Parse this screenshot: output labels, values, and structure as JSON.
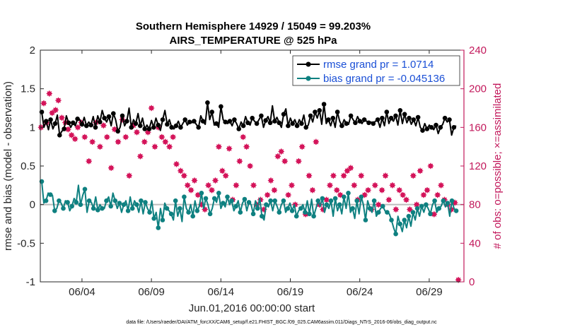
{
  "chart_data": {
    "type": "line",
    "title": "Southern Hemisphere 14929 / 15049 = 99.203%",
    "subtitle": "AIRS_TEMPERATURE @ 525 hPa",
    "xlabel": "Jun.01,2016 00:00:00 start",
    "ylabel_left": "rmse and bias (model - observation)",
    "ylabel_right": "# of obs: o=possible; ×=assimilated",
    "footer": "data file: /Users/raeder/DAI/ATM_forcXX/CAM6_setup/f.e21.FHIST_BGC.f09_025.CAM6assim.011/Diags_NTrS_2016-06/obs_diag_output.nc",
    "xlim": [
      0,
      30.5
    ],
    "x_ticks": [
      3,
      8,
      13,
      18,
      23,
      28
    ],
    "x_tick_labels": [
      "06/04",
      "06/09",
      "06/14",
      "06/19",
      "06/24",
      "06/29"
    ],
    "ylim_left": [
      -1,
      2
    ],
    "y_ticks_left": [
      "-1",
      "-0.5",
      "0",
      "0.5",
      "1",
      "1.5",
      "2"
    ],
    "ylim_right": [
      0,
      240
    ],
    "y_ticks_right": [
      "0",
      "40",
      "80",
      "120",
      "160",
      "200",
      "240"
    ],
    "grid": false,
    "legend_position": "top-right",
    "colors": {
      "rmse": "#000000",
      "bias": "#0e8080",
      "obs": "#d4145a",
      "zero": "#bdbdbd",
      "right_axis": "#c2185b",
      "legend_text": "#1a4fd6"
    },
    "series": [
      {
        "name": "rmse grand pr = 1.0714",
        "axis": "left",
        "values": [
          1.2,
          1.0,
          1.08,
          0.97,
          1.1,
          0.98,
          1.05,
          1.16,
          0.9,
          0.95,
          0.98,
          1.15,
          1.06,
          1.0,
          1.06,
          1.02,
          1.11,
          1.1,
          1.04,
          1.13,
          1.02,
          1.07,
          1.03,
          1.14,
          1.0,
          1.15,
          1.07,
          1.22,
          1.12,
          1.07,
          1.14,
          1.02,
          1.18,
          1.1,
          0.95,
          1.0,
          1.15,
          1.02,
          1.08,
          1.25,
          1.0,
          1.1,
          1.05,
          1.18,
          1.02,
          1.12,
          0.98,
          1.03,
          0.98,
          1.09,
          1.0,
          1.12,
          1.03,
          0.96,
          1.1,
          1.22,
          1.04,
          1.1,
          1.0,
          0.98,
          1.02,
          1.08,
          1.0,
          1.05,
          1.1,
          1.03,
          1.07,
          1.06,
          1.08,
          1.04,
          1.0,
          1.15,
          1.08,
          1.04,
          1.32,
          1.1,
          1.2,
          1.03,
          1.05,
          1.0,
          1.27,
          1.1,
          1.07,
          1.05,
          1.08,
          1.02,
          1.1,
          1.05,
          0.98,
          1.07,
          1.02,
          1.14,
          1.06,
          1.03,
          1.12,
          1.08,
          1.05,
          1.1,
          1.15,
          1.0,
          1.09,
          1.14,
          1.06,
          1.28,
          1.08,
          1.13,
          1.06,
          1.0,
          1.17,
          1.24,
          1.02,
          1.12,
          1.05,
          1.1,
          1.02,
          1.1,
          1.05,
          1.16,
          1.0,
          1.03,
          1.15,
          1.07,
          1.2,
          1.12,
          1.22,
          1.04,
          1.3,
          1.05,
          1.1,
          1.02,
          1.12,
          1.0,
          1.2,
          1.08,
          1.02,
          1.1,
          1.05,
          1.04,
          1.15,
          1.1,
          1.06,
          1.14,
          1.08,
          1.05,
          1.1,
          1.08,
          1.06,
          1.07,
          1.05,
          1.08,
          1.1,
          1.0,
          1.12,
          1.02,
          1.2,
          1.05,
          1.12,
          1.08,
          1.15,
          1.03,
          1.22,
          1.05,
          1.17,
          1.06,
          1.12,
          1.04,
          1.1,
          1.02,
          1.13,
          1.0,
          0.96,
          1.05,
          0.98,
          1.03,
          1.0,
          0.97,
          1.03,
          0.92,
          1.0,
          1.04,
          1.12,
          1.07,
          1.1,
          0.9,
          1.0,
          1.02
        ]
      },
      {
        "name": "bias grand pr = -0.045136",
        "axis": "left",
        "values": [
          0.3,
          0.02,
          0.05,
          0.15,
          0.13,
          0.12,
          -0.08,
          -0.05,
          0.05,
          0.02,
          -0.05,
          0.05,
          0.03,
          -0.08,
          -0.02,
          0.08,
          0.03,
          0.25,
          0.0,
          0.12,
          0.2,
          -0.1,
          0.05,
          0.03,
          -0.05,
          0.1,
          -0.07,
          0.0,
          -0.05,
          -0.05,
          0.05,
          0.1,
          -0.02,
          0.15,
          0.05,
          -0.05,
          0.02,
          -0.1,
          0.0,
          0.05,
          -0.08,
          0.1,
          -0.05,
          0.05,
          0.0,
          -0.1,
          0.05,
          -0.12,
          0.03,
          -0.05,
          -0.1,
          0.05,
          -0.18,
          -0.1,
          -0.3,
          -0.05,
          -0.2,
          0.02,
          -0.05,
          -0.08,
          -0.12,
          -0.2,
          0.05,
          -0.15,
          -0.05,
          -0.22,
          0.1,
          -0.05,
          -0.1,
          0.0,
          -0.15,
          0.05,
          -0.08,
          -0.02,
          0.15,
          -0.05,
          0.08,
          0.0,
          -0.12,
          -0.05,
          0.08,
          0.03,
          0.15,
          -0.05,
          0.02,
          -0.03,
          0.1,
          0.0,
          0.05,
          -0.08,
          -0.02,
          0.05,
          -0.1,
          0.02,
          0.07,
          -0.08,
          0.03,
          0.0,
          -0.12,
          0.05,
          -0.05,
          0.08,
          -0.15,
          -0.2,
          0.0,
          -0.03,
          0.05,
          -0.08,
          0.05,
          -0.02,
          -0.1,
          0.0,
          0.05,
          -0.1,
          -0.05,
          0.02,
          -0.08,
          0.0,
          -0.15,
          -0.08,
          -0.05,
          0.0,
          -0.1,
          0.05,
          -0.12,
          0.07,
          -0.15,
          -0.05,
          0.05,
          -0.02,
          0.08,
          -0.1,
          0.0,
          -0.05,
          0.05,
          -0.15,
          0.08,
          -0.08,
          0.0,
          -0.12,
          0.1,
          -0.05,
          0.15,
          -0.1,
          -0.05,
          -0.18,
          0.05,
          -0.12,
          0.1,
          0.0,
          -0.2,
          0.05,
          -0.05,
          -0.1,
          0.05,
          -0.15,
          -0.1,
          -0.05,
          -0.02,
          -0.08,
          -0.1,
          -0.12,
          -0.2,
          -0.3,
          -0.38,
          -0.15,
          -0.25,
          -0.35,
          -0.2,
          -0.3,
          -0.15,
          -0.28,
          -0.1,
          -0.2,
          -0.05,
          -0.15,
          -0.02,
          -0.1,
          0.0,
          -0.05,
          -0.12,
          0.0,
          0.05,
          -0.1,
          -0.05,
          -0.02,
          0.05,
          -0.03,
          0.02,
          -0.15,
          0.05,
          -0.05,
          -0.08
        ]
      },
      {
        "name": "obs assimilated",
        "axis": "right",
        "x": [
          0.05,
          0.25,
          0.45,
          0.65,
          0.85,
          1.1,
          1.3,
          1.55,
          1.8,
          2.0,
          2.25,
          2.5,
          2.7,
          2.95,
          3.2,
          3.5,
          3.75,
          4.0,
          4.3,
          4.55,
          4.8,
          5.1,
          5.35,
          5.6,
          5.9,
          6.15,
          6.4,
          6.7,
          6.95,
          7.2,
          7.5,
          7.75,
          8.0,
          8.25,
          8.5,
          8.75,
          9.0,
          9.3,
          9.55,
          9.8,
          10.1,
          10.35,
          10.6,
          10.85,
          11.1,
          11.35,
          11.6,
          11.85,
          12.1,
          12.35,
          12.6,
          12.85,
          13.1,
          13.35,
          13.6,
          13.85,
          14.1,
          14.35,
          14.6,
          14.85,
          15.1,
          15.35,
          15.6,
          15.85,
          16.1,
          16.35,
          16.6,
          16.85,
          17.1,
          17.35,
          17.6,
          17.85,
          18.1,
          18.35,
          18.6,
          18.85,
          19.1,
          19.35,
          19.6,
          19.85,
          20.1,
          20.35,
          20.6,
          20.85,
          21.1,
          21.35,
          21.6,
          21.85,
          22.1,
          22.35,
          22.6,
          22.85,
          23.1,
          23.35,
          23.6,
          23.85,
          24.1,
          24.35,
          24.6,
          24.85,
          25.1,
          25.35,
          25.6,
          25.85,
          26.1,
          26.35,
          26.6,
          26.85,
          27.1,
          27.35,
          27.6,
          27.85,
          28.1,
          28.35,
          28.6,
          28.85,
          29.1,
          29.35,
          29.6,
          29.85,
          30.1
        ],
        "values": [
          160,
          185,
          165,
          195,
          175,
          178,
          188,
          170,
          165,
          158,
          152,
          148,
          160,
          165,
          150,
          125,
          145,
          165,
          140,
          162,
          150,
          118,
          158,
          145,
          168,
          150,
          110,
          162,
          155,
          130,
          145,
          155,
          180,
          140,
          160,
          150,
          145,
          140,
          150,
          122,
          115,
          110,
          100,
          95,
          105,
          90,
          80,
          75,
          100,
          95,
          105,
          140,
          115,
          110,
          138,
          85,
          100,
          125,
          150,
          140,
          120,
          100,
          80,
          85,
          75,
          90,
          105,
          95,
          130,
          135,
          125,
          90,
          100,
          80,
          125,
          140,
          70,
          110,
          95,
          145,
          80,
          75,
          85,
          100,
          110,
          95,
          90,
          110,
          115,
          118,
          100,
          85,
          110,
          90,
          95,
          75,
          100,
          80,
          95,
          110,
          85,
          100,
          75,
          95,
          90,
          85,
          75,
          110,
          80,
          115,
          90,
          95,
          120,
          70,
          90,
          100,
          85,
          80,
          75,
          82,
          2
        ]
      }
    ]
  }
}
